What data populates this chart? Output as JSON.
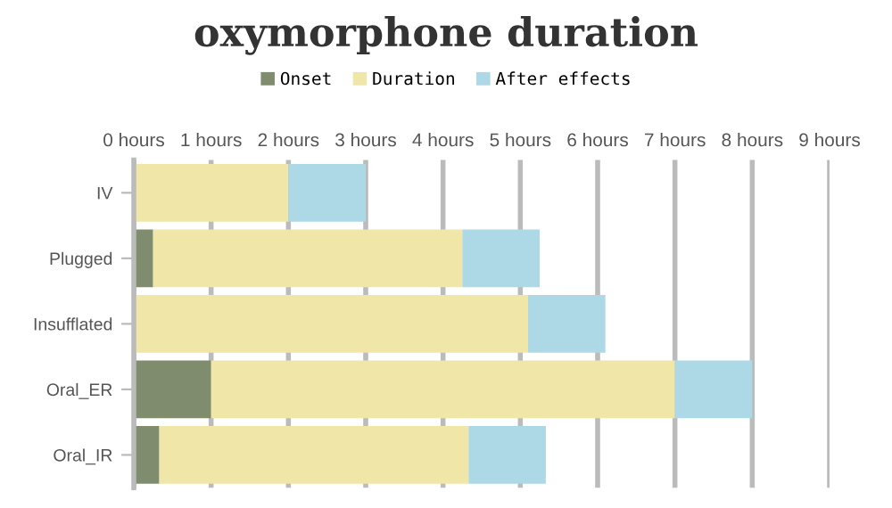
{
  "chart_data": {
    "type": "bar",
    "title": "oxymorphone duration",
    "orientation": "horizontal",
    "stacked": true,
    "legend": "top",
    "grid": "x",
    "categories": [
      "IV",
      "Plugged",
      "Insufflated",
      "Oral_ER",
      "Oral_IR"
    ],
    "series": [
      {
        "name": "Onset",
        "color": "#7f8c6d",
        "values": [
          0,
          0.25,
          0,
          1,
          0.33
        ]
      },
      {
        "name": "Duration",
        "color": "#f0e6a8",
        "values": [
          2,
          4,
          5.1,
          6,
          4
        ]
      },
      {
        "name": "After effects",
        "color": "#add8e6",
        "values": [
          1,
          1,
          1,
          1,
          1
        ]
      }
    ],
    "xlim": [
      0,
      9
    ],
    "xticks": [
      {
        "value": 0,
        "label": "0 hours"
      },
      {
        "value": 1,
        "label": "1 hours"
      },
      {
        "value": 2,
        "label": "2 hours"
      },
      {
        "value": 3,
        "label": "3 hours"
      },
      {
        "value": 4,
        "label": "4 hours"
      },
      {
        "value": 5,
        "label": "5 hours"
      },
      {
        "value": 6,
        "label": "6 hours"
      },
      {
        "value": 7,
        "label": "7 hours"
      },
      {
        "value": 8,
        "label": "8 hours"
      },
      {
        "value": 9,
        "label": "9 hours"
      }
    ]
  }
}
